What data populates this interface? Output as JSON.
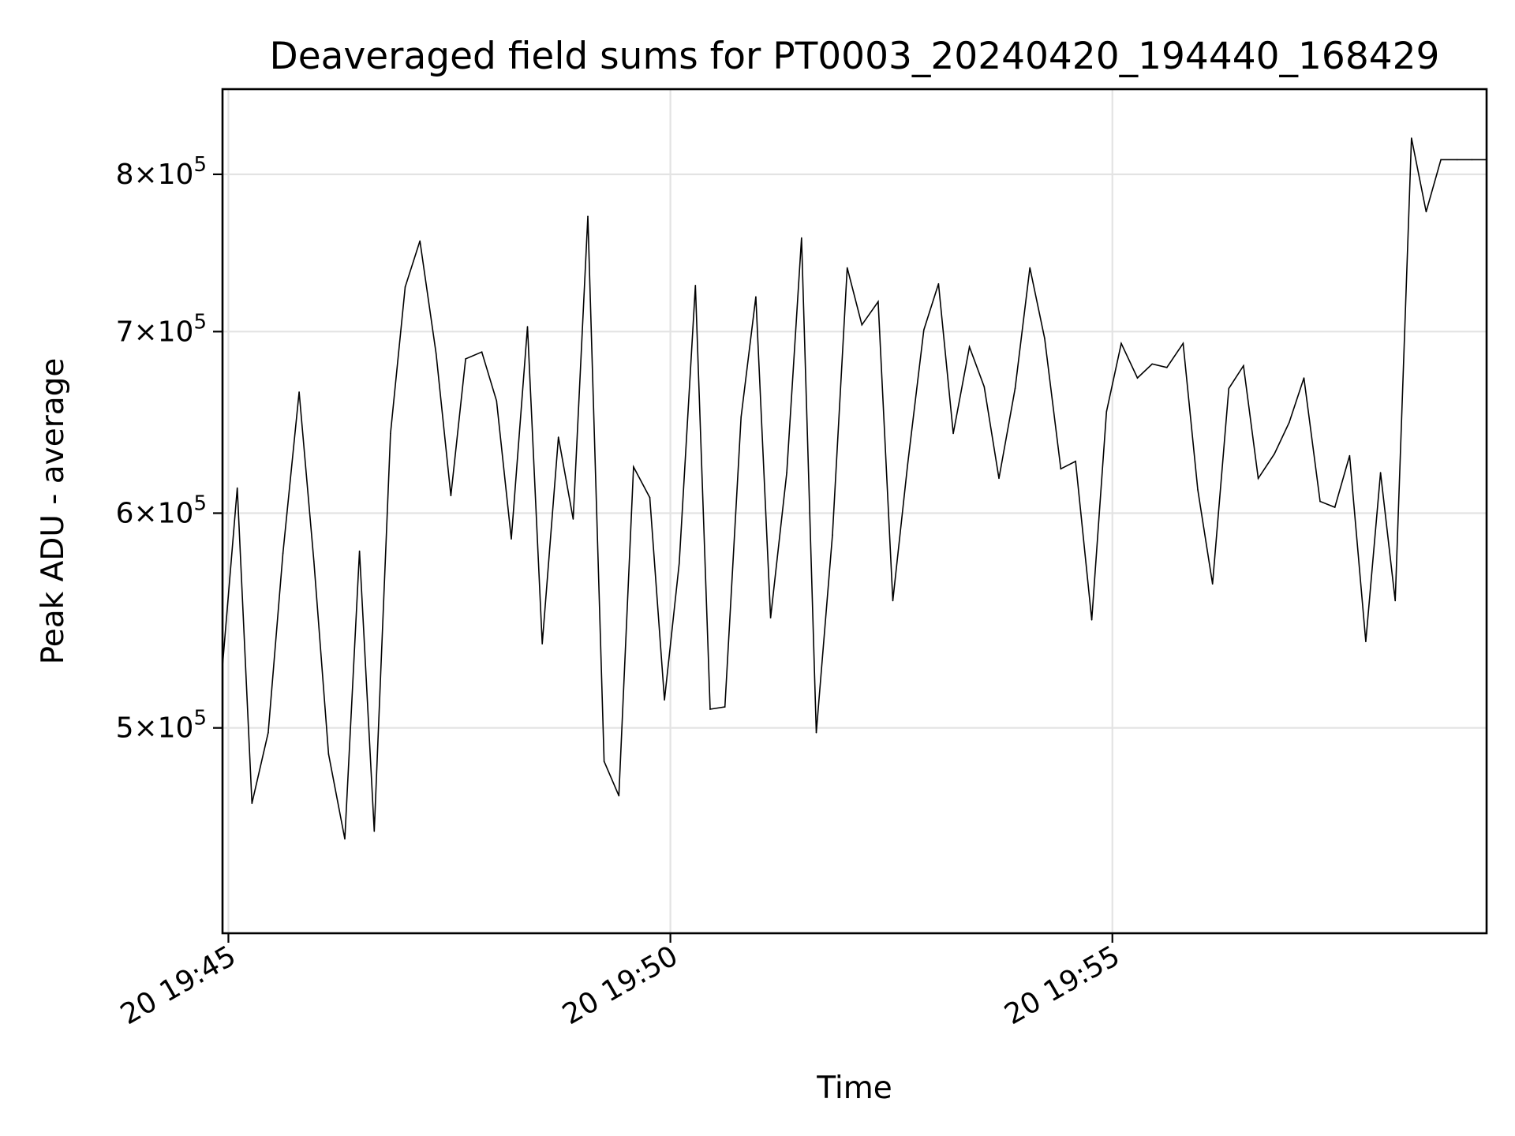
{
  "chart_data": {
    "type": "line",
    "title": "Deaveraged field sums for PT0003_20240420_194440_168429",
    "xlabel": "Time",
    "ylabel": "Peak ADU - average",
    "yscale": "log",
    "ylim": [
      420000,
      860000
    ],
    "xlim": [
      "2024-04-20T19:44:56",
      "2024-04-20T19:59:14"
    ],
    "grid": true,
    "line_color": "#000000",
    "x_ticks": [
      {
        "value": "2024-04-20T19:45:00",
        "label": "20 19:45"
      },
      {
        "value": "2024-04-20T19:50:00",
        "label": "20 19:50"
      },
      {
        "value": "2024-04-20T19:55:00",
        "label": "20 19:55"
      }
    ],
    "y_ticks": [
      {
        "value": 500000,
        "mantissa": "5",
        "base": "10",
        "exp": "5"
      },
      {
        "value": 600000,
        "mantissa": "6",
        "base": "10",
        "exp": "5"
      },
      {
        "value": 700000,
        "mantissa": "7",
        "base": "10",
        "exp": "5"
      },
      {
        "value": 800000,
        "mantissa": "8",
        "base": "10",
        "exp": "5"
      }
    ],
    "series": [
      {
        "x": [
          "2024-04-20T19:44:56",
          "2024-04-20T19:45:06",
          "2024-04-20T19:45:16",
          "2024-04-20T19:45:27",
          "2024-04-20T19:45:37",
          "2024-04-20T19:45:48",
          "2024-04-20T19:45:58",
          "2024-04-20T19:46:08",
          "2024-04-20T19:46:19",
          "2024-04-20T19:46:29",
          "2024-04-20T19:46:39",
          "2024-04-20T19:46:50",
          "2024-04-20T19:47:00",
          "2024-04-20T19:47:10",
          "2024-04-20T19:47:21",
          "2024-04-20T19:47:31",
          "2024-04-20T19:47:41",
          "2024-04-20T19:47:52",
          "2024-04-20T19:48:02",
          "2024-04-20T19:48:12",
          "2024-04-20T19:48:23",
          "2024-04-20T19:48:33",
          "2024-04-20T19:48:44",
          "2024-04-20T19:48:54",
          "2024-04-20T19:49:04",
          "2024-04-20T19:49:15",
          "2024-04-20T19:49:25",
          "2024-04-20T19:49:35",
          "2024-04-20T19:49:46",
          "2024-04-20T19:49:56",
          "2024-04-20T19:50:06",
          "2024-04-20T19:50:17",
          "2024-04-20T19:50:27",
          "2024-04-20T19:50:37",
          "2024-04-20T19:50:48",
          "2024-04-20T19:50:58",
          "2024-04-20T19:51:08",
          "2024-04-20T19:51:19",
          "2024-04-20T19:51:29",
          "2024-04-20T19:51:39",
          "2024-04-20T19:51:50",
          "2024-04-20T19:52:00",
          "2024-04-20T19:52:10",
          "2024-04-20T19:52:21",
          "2024-04-20T19:52:31",
          "2024-04-20T19:52:41",
          "2024-04-20T19:52:52",
          "2024-04-20T19:53:02",
          "2024-04-20T19:53:12",
          "2024-04-20T19:53:23",
          "2024-04-20T19:53:33",
          "2024-04-20T19:53:43",
          "2024-04-20T19:53:54",
          "2024-04-20T19:54:04",
          "2024-04-20T19:54:14",
          "2024-04-20T19:54:25",
          "2024-04-20T19:54:35",
          "2024-04-20T19:54:46",
          "2024-04-20T19:54:56",
          "2024-04-20T19:55:06",
          "2024-04-20T19:55:17",
          "2024-04-20T19:55:27",
          "2024-04-20T19:55:37",
          "2024-04-20T19:55:48",
          "2024-04-20T19:55:58",
          "2024-04-20T19:56:08",
          "2024-04-20T19:56:19",
          "2024-04-20T19:56:29",
          "2024-04-20T19:56:39",
          "2024-04-20T19:56:50",
          "2024-04-20T19:57:00",
          "2024-04-20T19:57:10",
          "2024-04-20T19:57:21",
          "2024-04-20T19:57:31",
          "2024-04-20T19:57:41",
          "2024-04-20T19:57:52",
          "2024-04-20T19:58:02",
          "2024-04-20T19:58:12",
          "2024-04-20T19:58:23",
          "2024-04-20T19:58:33",
          "2024-04-20T19:58:43",
          "2024-04-20T19:58:54",
          "2024-04-20T19:59:04",
          "2024-04-20T19:59:14"
        ],
        "y": [
          527000,
          613000,
          469000,
          498000,
          580000,
          665000,
          576000,
          489000,
          455000,
          581000,
          458000,
          642000,
          727000,
          756000,
          687000,
          609000,
          684000,
          688000,
          660000,
          587000,
          703000,
          537000,
          640000,
          597000,
          772000,
          486000,
          472000,
          624000,
          608000,
          512000,
          575000,
          728000,
          508000,
          509000,
          651000,
          721000,
          549000,
          621000,
          758000,
          498000,
          589000,
          739000,
          704000,
          718000,
          557000,
          625000,
          701000,
          729000,
          642000,
          691000,
          668000,
          618000,
          667000,
          739000,
          696000,
          623000,
          627000,
          548000,
          654000,
          693000,
          673000,
          681000,
          679000,
          693000,
          612000,
          565000,
          667000,
          680000,
          618000,
          631000,
          648000,
          673000,
          606000,
          603000,
          630000,
          538000,
          621000,
          557000,
          825000,
          775000,
          810000,
          810000,
          810000,
          810000
        ]
      }
    ]
  }
}
